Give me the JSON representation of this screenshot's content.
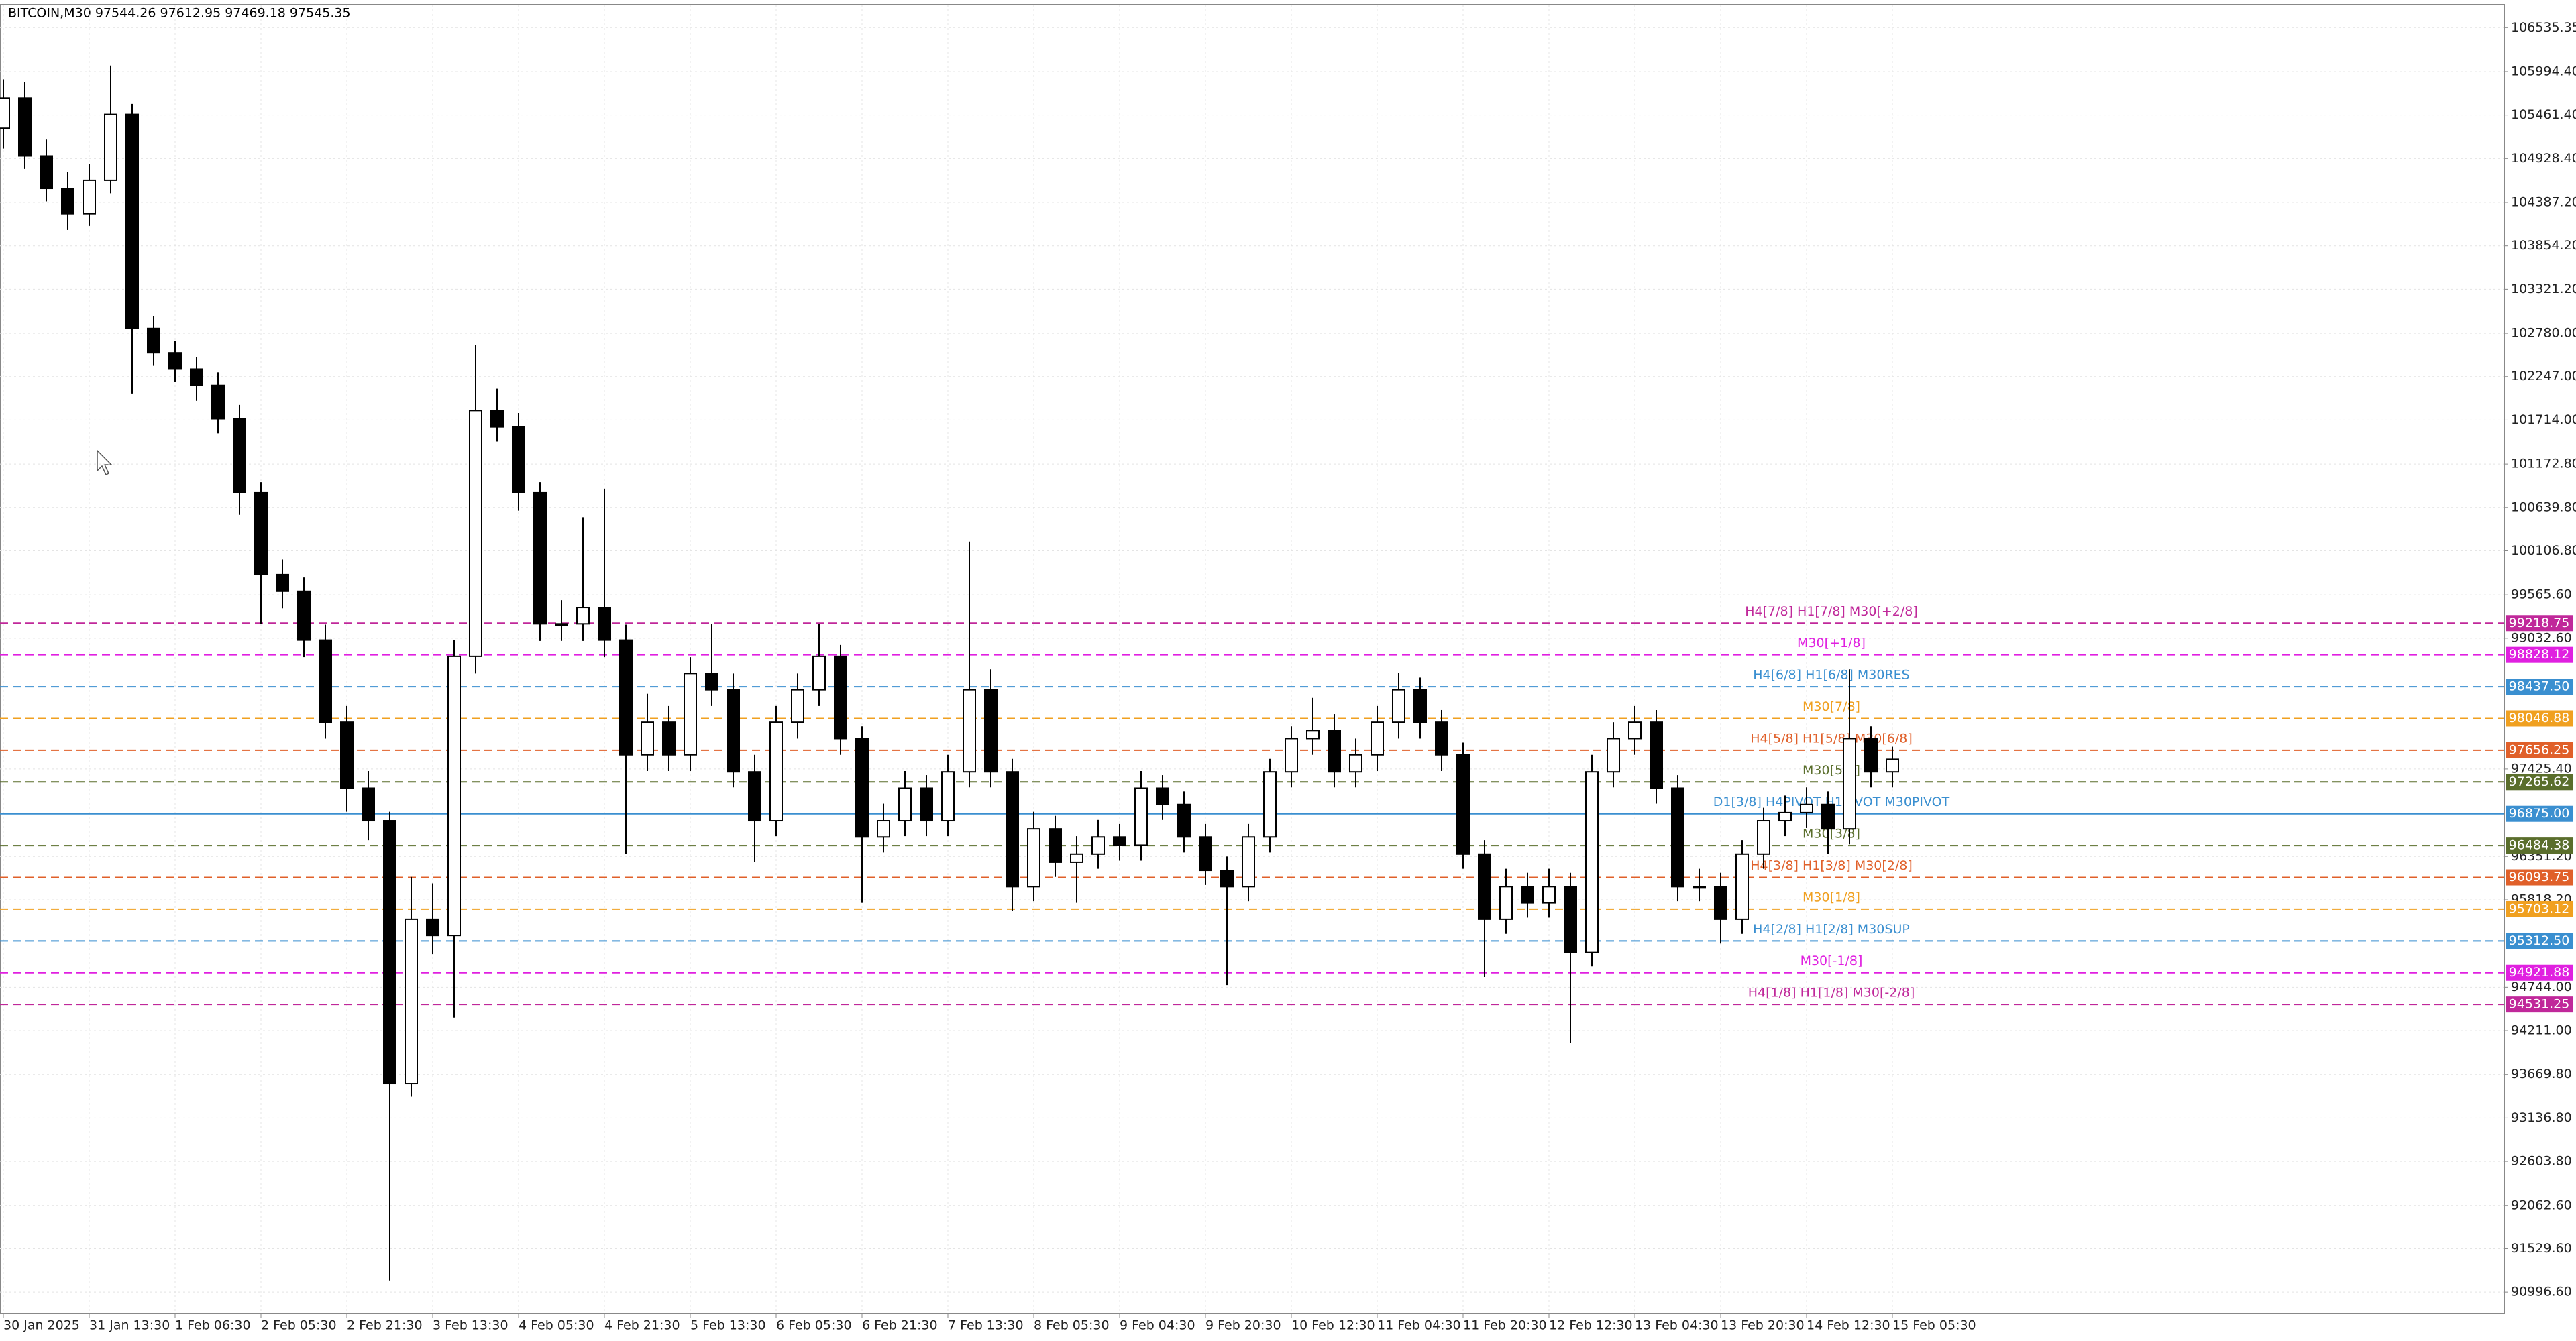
{
  "chart_data": {
    "type": "candlestick",
    "title": "BITCOIN,M30  97544.26 97612.95 97469.18 97545.35",
    "grid": true,
    "ylim": [
      90734,
      106818
    ],
    "yticks": [
      {
        "value": 106535.35,
        "label": "106535.35"
      },
      {
        "value": 105994.4,
        "label": "105994.40"
      },
      {
        "value": 105461.4,
        "label": "105461.40"
      },
      {
        "value": 104928.4,
        "label": "104928.40"
      },
      {
        "value": 104387.2,
        "label": "104387.20"
      },
      {
        "value": 103854.2,
        "label": "103854.20"
      },
      {
        "value": 103321.2,
        "label": "103321.20"
      },
      {
        "value": 102780,
        "label": "102780.00"
      },
      {
        "value": 102247,
        "label": "102247.00"
      },
      {
        "value": 101714,
        "label": "101714.00"
      },
      {
        "value": 101172.8,
        "label": "101172.80"
      },
      {
        "value": 100639.8,
        "label": "100639.80"
      },
      {
        "value": 100106.8,
        "label": "100106.80"
      },
      {
        "value": 99565.6,
        "label": "99565.60"
      },
      {
        "value": 99032.6,
        "label": "99032.60"
      },
      {
        "value": 97425.4,
        "label": "97425.40"
      },
      {
        "value": 96351.2,
        "label": "96351.20"
      },
      {
        "value": 95818.2,
        "label": "95818.20"
      },
      {
        "value": 94744,
        "label": "94744.00"
      },
      {
        "value": 94211,
        "label": "94211.00"
      },
      {
        "value": 93669.8,
        "label": "93669.80"
      },
      {
        "value": 93136.8,
        "label": "93136.80"
      },
      {
        "value": 92603.8,
        "label": "92603.80"
      },
      {
        "value": 92062.6,
        "label": "92062.60"
      },
      {
        "value": 91529.6,
        "label": "91529.60"
      },
      {
        "value": 90996.6,
        "label": "90996.60"
      }
    ],
    "categories": [
      "30 Jan 2025",
      null,
      null,
      null,
      "31 Jan 13:30",
      null,
      null,
      null,
      "1 Feb 06:30",
      null,
      null,
      null,
      "2 Feb 05:30",
      null,
      null,
      null,
      "2 Feb 21:30",
      null,
      null,
      null,
      "3 Feb 13:30",
      null,
      null,
      null,
      "4 Feb 05:30",
      null,
      null,
      null,
      "4 Feb 21:30",
      null,
      null,
      null,
      "5 Feb 13:30",
      null,
      null,
      null,
      "6 Feb 05:30",
      null,
      null,
      null,
      "6 Feb 21:30",
      null,
      null,
      null,
      "7 Feb 13:30",
      null,
      null,
      null,
      "8 Feb 05:30",
      null,
      null,
      null,
      "9 Feb 04:30",
      null,
      null,
      null,
      "9 Feb 20:30",
      null,
      null,
      null,
      "10 Feb 12:30",
      null,
      null,
      null,
      "11 Feb 04:30",
      null,
      null,
      null,
      "11 Feb 20:30",
      null,
      null,
      null,
      "12 Feb 12:30",
      null,
      null,
      null,
      "13 Feb 04:30",
      null,
      null,
      null,
      "13 Feb 20:30",
      null,
      null,
      null,
      "14 Feb 12:30",
      null,
      null,
      null,
      "15 Feb 05:30"
    ],
    "open": [
      105300,
      105670,
      104960,
      104560,
      104250,
      104660,
      105470,
      102840,
      102540,
      102340,
      102140,
      101730,
      100820,
      99815,
      99610,
      99010,
      98000,
      97190,
      96790,
      93560,
      95580,
      95380,
      98810,
      101830,
      101630,
      100820,
      99210,
      99210,
      99410,
      99010,
      97600,
      98000,
      97600,
      98600,
      98400,
      97390,
      96790,
      98000,
      98400,
      98810,
      97800,
      96590,
      96790,
      97190,
      96790,
      97390,
      98400,
      97390,
      95980,
      96690,
      96280,
      96380,
      96590,
      96490,
      97190,
      96990,
      96590,
      96180,
      95980,
      96590,
      97390,
      97800,
      97900,
      97390,
      97600,
      98000,
      98400,
      98000,
      97600,
      96380,
      95580,
      95980,
      95780,
      95980,
      95170,
      97390,
      97800,
      98000,
      97190,
      95980,
      95980,
      95580,
      96380,
      96790,
      96890,
      96990,
      96690,
      97800,
      97390
    ],
    "high": [
      105900,
      105870,
      105160,
      104760,
      104860,
      106070,
      105600,
      102990,
      102690,
      102490,
      102300,
      101900,
      100950,
      100000,
      99780,
      99200,
      98200,
      97400,
      96900,
      96100,
      96020,
      99010,
      102640,
      102100,
      101800,
      100950,
      99500,
      100520,
      100870,
      99200,
      98350,
      98200,
      98800,
      99210,
      98600,
      97600,
      98200,
      98600,
      99210,
      98950,
      97950,
      97000,
      97400,
      97350,
      97600,
      100220,
      98650,
      97550,
      96900,
      96850,
      96600,
      96800,
      96750,
      97400,
      97350,
      97150,
      96750,
      96350,
      96750,
      97550,
      97950,
      98300,
      98100,
      97800,
      98200,
      98610,
      98550,
      98150,
      97750,
      96550,
      96200,
      96150,
      96200,
      96150,
      97600,
      98000,
      98200,
      98150,
      97350,
      96200,
      96150,
      96550,
      96950,
      97100,
      97200,
      97150,
      98650,
      97950,
      97700
    ],
    "low": [
      105050,
      104800,
      104400,
      104050,
      104100,
      104500,
      102040,
      102380,
      102180,
      101950,
      101550,
      100550,
      99210,
      99400,
      98800,
      97800,
      96900,
      96550,
      91140,
      93400,
      95150,
      94370,
      98600,
      101450,
      100600,
      99000,
      99000,
      99000,
      98800,
      96380,
      97400,
      97400,
      97400,
      98200,
      97200,
      96280,
      96600,
      97800,
      98200,
      97600,
      95780,
      96400,
      96600,
      96600,
      96600,
      97200,
      97200,
      95680,
      95800,
      96100,
      95780,
      96200,
      96300,
      96300,
      96800,
      96400,
      96000,
      94770,
      95800,
      96400,
      97200,
      97600,
      97200,
      97200,
      97400,
      97800,
      97800,
      97400,
      96200,
      94870,
      95400,
      95600,
      95600,
      94060,
      95000,
      97200,
      97600,
      97000,
      95800,
      95800,
      95280,
      95400,
      96200,
      96600,
      96700,
      96380,
      96500,
      97200,
      97200
    ],
    "close": [
      105670,
      104960,
      104560,
      104250,
      104660,
      105470,
      102840,
      102540,
      102340,
      102140,
      101730,
      100820,
      99815,
      99610,
      99010,
      98000,
      97190,
      96790,
      93560,
      95580,
      95380,
      98810,
      101830,
      101630,
      100820,
      99210,
      99210,
      99410,
      99010,
      97600,
      98000,
      97600,
      98600,
      98400,
      97390,
      96790,
      98000,
      98400,
      98810,
      97800,
      96590,
      96790,
      97190,
      96790,
      97390,
      98400,
      97390,
      95980,
      96690,
      96280,
      96380,
      96590,
      96490,
      97190,
      96990,
      96590,
      96180,
      95980,
      96590,
      97390,
      97800,
      97900,
      97390,
      97600,
      98000,
      98400,
      98000,
      97600,
      96380,
      95580,
      95980,
      95780,
      95980,
      95170,
      97390,
      97800,
      98000,
      97190,
      95980,
      95980,
      95580,
      96380,
      96790,
      96890,
      96990,
      96690,
      97800,
      97390,
      97545
    ],
    "levels": [
      {
        "name": "H4[7/8] H1[7/8] M30[+2/8]",
        "value": 99218.75,
        "tag": "99218.75",
        "color": "#c0289a"
      },
      {
        "name": "M30[+1/8]",
        "value": 98828.12,
        "tag": "98828.12",
        "color": "#e020e0"
      },
      {
        "name": "H4[6/8] H1[6/8] M30RES",
        "value": 98437.5,
        "tag": "98437.50",
        "color": "#3a8fd0"
      },
      {
        "name": "M30[7/8]",
        "value": 98046.88,
        "tag": "98046.88",
        "color": "#f0a020"
      },
      {
        "name": "H4[5/8] H1[5/8] M30[6/8]",
        "value": 97656.25,
        "tag": "97656.25",
        "color": "#e0602a"
      },
      {
        "name": "M30[5/8]",
        "value": 97265.62,
        "tag": "97265.62",
        "color": "#5a6e2c"
      },
      {
        "name": "D1[3/8] H4PIVOT H1PIVOT M30PIVOT",
        "value": 96875,
        "tag": "96875.00",
        "color": "#3a8fd0",
        "solid": true
      },
      {
        "name": "M30[3/8]",
        "value": 96484.38,
        "tag": "96484.38",
        "color": "#5a6e2c"
      },
      {
        "name": "H4[3/8] H1[3/8] M30[2/8]",
        "value": 96093.75,
        "tag": "96093.75",
        "color": "#e0602a"
      },
      {
        "name": "M30[1/8]",
        "value": 95703.12,
        "tag": "95703.12",
        "color": "#f0a020"
      },
      {
        "name": "H4[2/8] H1[2/8] M30SUP",
        "value": 95312.5,
        "tag": "95312.50",
        "color": "#3a8fd0"
      },
      {
        "name": "M30[-1/8]",
        "value": 94921.88,
        "tag": "94921.88",
        "color": "#e020e0"
      },
      {
        "name": "H4[1/8] H1[1/8] M30[-2/8]",
        "value": 94531.25,
        "tag": "94531.25",
        "color": "#c0289a"
      }
    ]
  }
}
